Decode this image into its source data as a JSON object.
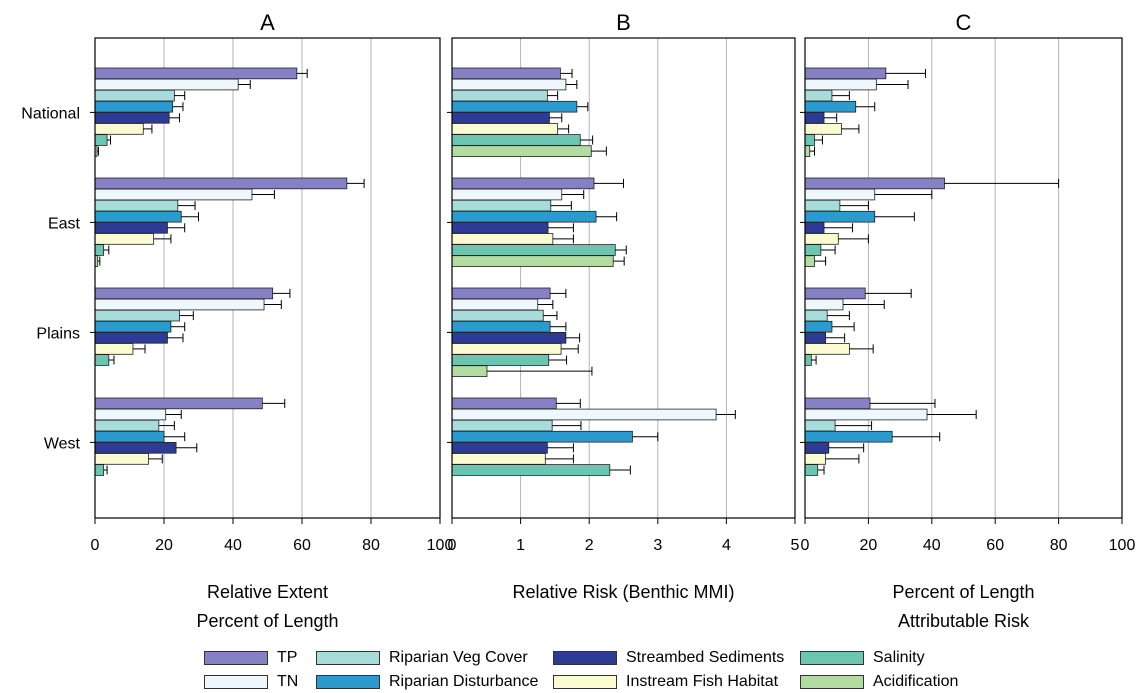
{
  "chart_data": {
    "type": "bar",
    "orientation": "horizontal",
    "categories": [
      "National",
      "East",
      "Plains",
      "West"
    ],
    "legend": {
      "placement": "bottom",
      "items": [
        {
          "label": "TP",
          "color": "#8680c4"
        },
        {
          "label": "TN",
          "color": "#eef7fb"
        },
        {
          "label": "Riparian Veg Cover",
          "color": "#a8dcdb"
        },
        {
          "label": "Riparian Disturbance",
          "color": "#2b9acf"
        },
        {
          "label": "Streambed Sediments",
          "color": "#2d3b96"
        },
        {
          "label": "Instream Fish Habitat",
          "color": "#fbfbd2"
        },
        {
          "label": "Salinity",
          "color": "#6bc5b1"
        },
        {
          "label": "Acidification",
          "color": "#b3dca0"
        }
      ]
    },
    "panels": [
      {
        "letter": "A",
        "xlabel_lines": [
          "Relative Extent",
          "Percent of Length"
        ],
        "xlim": [
          0,
          100
        ],
        "xticks": [
          0,
          20,
          40,
          60,
          80,
          100
        ],
        "tick_labels": [
          "0",
          "20",
          "40",
          "60",
          "80",
          "100"
        ],
        "grid": true,
        "series": [
          {
            "name": "TP",
            "values": [
              58.5,
              73,
              51.5,
              48.5
            ],
            "errors": [
              3,
              5,
              5,
              6.5
            ]
          },
          {
            "name": "TN",
            "values": [
              41.5,
              45.5,
              49,
              20.5
            ],
            "errors": [
              3.5,
              6.5,
              5,
              4.5
            ]
          },
          {
            "name": "Riparian Veg Cover",
            "values": [
              23,
              24,
              24.5,
              18.5
            ],
            "errors": [
              3,
              5,
              4,
              4.5
            ]
          },
          {
            "name": "Riparian Disturbance",
            "values": [
              22.5,
              25,
              22,
              20
            ],
            "errors": [
              3,
              5,
              4,
              6
            ]
          },
          {
            "name": "Streambed Sediments",
            "values": [
              21.5,
              21,
              21,
              23.5
            ],
            "errors": [
              3,
              5,
              4.5,
              6
            ]
          },
          {
            "name": "Instream Fish Habitat",
            "values": [
              14,
              17,
              11,
              15.5
            ],
            "errors": [
              2.5,
              5,
              3.5,
              4
            ]
          },
          {
            "name": "Salinity",
            "values": [
              3.5,
              2.5,
              4,
              2.5
            ],
            "errors": [
              1,
              1.5,
              1.5,
              1
            ]
          },
          {
            "name": "Acidification",
            "values": [
              0.6,
              0.8,
              0,
              0
            ],
            "errors": [
              0.4,
              0.6,
              0,
              0
            ]
          }
        ]
      },
      {
        "letter": "B",
        "xlabel_lines": [
          "Relative Risk (Benthic MMI)"
        ],
        "xlim": [
          0,
          5
        ],
        "xticks": [
          0,
          1,
          2,
          3,
          4,
          5
        ],
        "tick_labels": [
          "0",
          "1",
          "2",
          "3",
          "4",
          "5"
        ],
        "grid": true,
        "series": [
          {
            "name": "TP",
            "values": [
              1.58,
              2.07,
              1.43,
              1.52
            ],
            "errors": [
              0.17,
              0.43,
              0.23,
              0.35
            ]
          },
          {
            "name": "TN",
            "values": [
              1.66,
              1.6,
              1.25,
              3.85
            ],
            "errors": [
              0.16,
              0.32,
              0.22,
              0.28
            ]
          },
          {
            "name": "Riparian Veg Cover",
            "values": [
              1.39,
              1.44,
              1.33,
              1.46
            ],
            "errors": [
              0.15,
              0.3,
              0.2,
              0.42
            ]
          },
          {
            "name": "Riparian Disturbance",
            "values": [
              1.82,
              2.1,
              1.43,
              2.63
            ],
            "errors": [
              0.16,
              0.3,
              0.23,
              0.37
            ]
          },
          {
            "name": "Streambed Sediments",
            "values": [
              1.42,
              1.4,
              1.66,
              1.39
            ],
            "errors": [
              0.18,
              0.37,
              0.2,
              0.38
            ]
          },
          {
            "name": "Instream Fish Habitat",
            "values": [
              1.54,
              1.47,
              1.59,
              1.36
            ],
            "errors": [
              0.16,
              0.3,
              0.25,
              0.41
            ]
          },
          {
            "name": "Salinity",
            "values": [
              1.87,
              2.38,
              1.41,
              2.3
            ],
            "errors": [
              0.18,
              0.16,
              0.26,
              0.3
            ]
          },
          {
            "name": "Acidification",
            "values": [
              2.03,
              2.35,
              0.51,
              0
            ],
            "errors": [
              0.22,
              0.16,
              1.53,
              0
            ]
          }
        ]
      },
      {
        "letter": "C",
        "xlabel_lines": [
          "Percent of Length",
          "Attributable Risk"
        ],
        "xlim": [
          0,
          100
        ],
        "xticks": [
          0,
          20,
          40,
          60,
          80,
          100
        ],
        "tick_labels": [
          "0",
          "20",
          "40",
          "60",
          "80",
          "100"
        ],
        "grid": true,
        "series": [
          {
            "name": "TP",
            "values": [
              25.5,
              44,
              19,
              20.5
            ],
            "errors": [
              12.5,
              36,
              14.5,
              20.5
            ]
          },
          {
            "name": "TN",
            "values": [
              22.5,
              22,
              12,
              38.5
            ],
            "errors": [
              10,
              18,
              13,
              15.5
            ]
          },
          {
            "name": "Riparian Veg Cover",
            "values": [
              8.5,
              11,
              7,
              9.5
            ],
            "errors": [
              5.5,
              9,
              7,
              11.5
            ]
          },
          {
            "name": "Riparian Disturbance",
            "values": [
              16,
              22,
              8.5,
              27.5
            ],
            "errors": [
              6,
              12.5,
              7,
              15
            ]
          },
          {
            "name": "Streambed Sediments",
            "values": [
              6,
              6,
              6.5,
              7.5
            ],
            "errors": [
              4,
              9,
              6,
              11
            ]
          },
          {
            "name": "Instream Fish Habitat",
            "values": [
              11.5,
              10.5,
              14,
              6.5
            ],
            "errors": [
              5.5,
              9.5,
              7.5,
              10.5
            ]
          },
          {
            "name": "Salinity",
            "values": [
              3,
              5,
              2,
              4
            ],
            "errors": [
              2.5,
              4.5,
              1.5,
              2
            ]
          },
          {
            "name": "Acidification",
            "values": [
              1.5,
              3,
              0,
              0
            ],
            "errors": [
              1.5,
              3.5,
              0,
              0
            ]
          }
        ]
      }
    ]
  }
}
